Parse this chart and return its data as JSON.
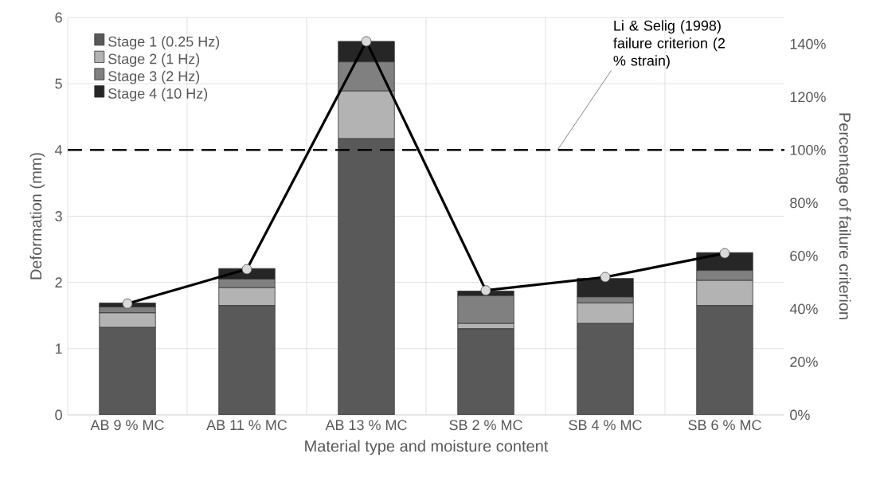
{
  "chart_data": {
    "type": "bar",
    "stacked": true,
    "xlabel": "Material type and moisture content",
    "ylabel": "Deformation (mm)",
    "y2label": "Percentage of failure criterion",
    "categories": [
      "AB 9 % MC",
      "AB 11 % MC",
      "AB 13 % MC",
      "SB 2 % MC",
      "SB 4 % MC",
      "SB 6 % MC"
    ],
    "series": [
      {
        "name": "Stage 1 (0.25 Hz)",
        "color": "#595959",
        "values": [
          1.32,
          1.65,
          4.17,
          1.3,
          1.38,
          1.65
        ]
      },
      {
        "name": "Stage 2 (1 Hz)",
        "color": "#b3b3b3",
        "values": [
          0.22,
          0.27,
          0.72,
          0.08,
          0.31,
          0.38
        ]
      },
      {
        "name": "Stage 3 (2 Hz)",
        "color": "#808080",
        "values": [
          0.09,
          0.13,
          0.44,
          0.42,
          0.09,
          0.15
        ]
      },
      {
        "name": "Stage 4 (10 Hz)",
        "color": "#262626",
        "values": [
          0.06,
          0.16,
          0.31,
          0.07,
          0.28,
          0.27
        ]
      },
      {
        "type": "line",
        "axis": "y2",
        "color": "#000000",
        "marker": "circle",
        "values": [
          42,
          55,
          141,
          47,
          52,
          61
        ]
      }
    ],
    "ylim": [
      0,
      6
    ],
    "yticks": [
      0,
      1,
      2,
      3,
      4,
      5,
      6
    ],
    "y2lim": [
      0,
      150
    ],
    "y2ticks": [
      {
        "value": 0,
        "label": "0%"
      },
      {
        "value": 20,
        "label": "20%"
      },
      {
        "value": 40,
        "label": "40%"
      },
      {
        "value": 60,
        "label": "60%"
      },
      {
        "value": 80,
        "label": "80%"
      },
      {
        "value": 100,
        "label": "100%"
      },
      {
        "value": 120,
        "label": "120%"
      },
      {
        "value": 140,
        "label": "140%"
      }
    ],
    "ref_lines": [
      {
        "axis": "y2",
        "value": 100,
        "label": "Li & Selig (1998) failure criterion (2 % strain)",
        "color": "#000000",
        "line_style": "dashed"
      }
    ],
    "grid": true,
    "legend": "top left"
  }
}
